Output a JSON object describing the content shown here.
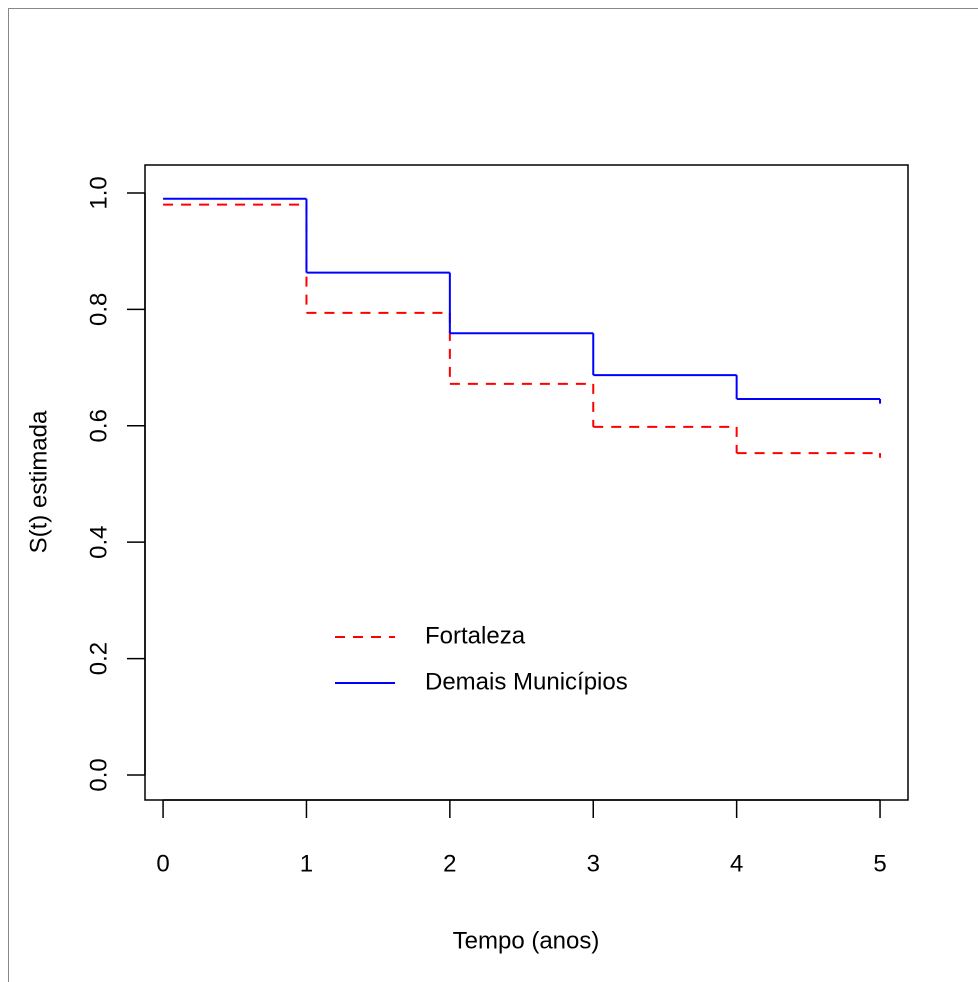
{
  "chart_data": {
    "type": "step",
    "x_label": "Tempo (anos)",
    "y_label": "S(t) estimada",
    "x": [
      0,
      1,
      2,
      3,
      4,
      5
    ],
    "series": [
      {
        "name": "Fortaleza",
        "color": "#ff0000",
        "linestyle": "dashed",
        "values": [
          0.98,
          0.794,
          0.672,
          0.598,
          0.553,
          0.545
        ]
      },
      {
        "name": "Demais Municípios",
        "color": "#0000ff",
        "linestyle": "solid",
        "values": [
          0.99,
          0.863,
          0.759,
          0.687,
          0.646,
          0.638
        ]
      }
    ],
    "xlim": [
      -0.126,
      5.195
    ],
    "xticks": [
      0,
      1,
      2,
      3,
      4,
      5
    ],
    "ylim": [
      -0.043,
      1.048
    ],
    "yticks": [
      {
        "value": 0,
        "label": "0.0"
      },
      0.2,
      0.4,
      0.6,
      0.8,
      {
        "value": 1,
        "label": "1.0"
      }
    ],
    "legend": "bottom"
  }
}
